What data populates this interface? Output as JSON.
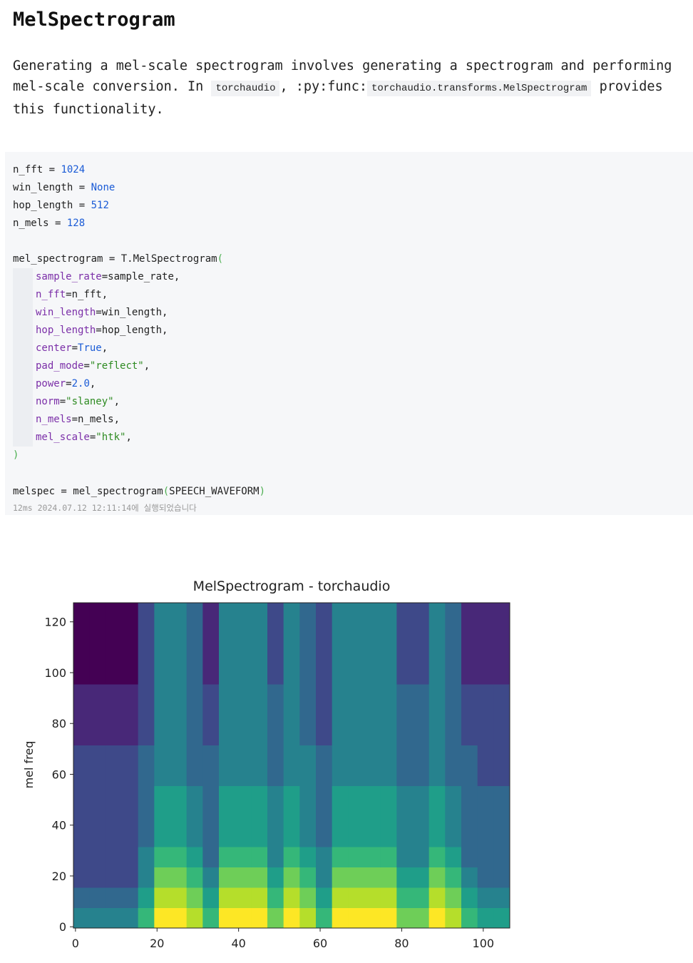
{
  "header": {
    "title": "MelSpectrogram"
  },
  "paragraph": [
    {
      "text": "Generating a mel-scale spectrogram involves generating a spectrogram and performing mel-scale conversion. In "
    },
    {
      "code": "torchaudio"
    },
    {
      "text": ", :py:func:"
    },
    {
      "code": "torchaudio.transforms.MelSpectrogram"
    },
    {
      "text": " provides this functionality."
    }
  ],
  "code": {
    "setup": [
      [
        "n_fft",
        " = ",
        "1024"
      ],
      [
        "win_length",
        " = ",
        "None"
      ],
      [
        "hop_length",
        " = ",
        "512"
      ],
      [
        "n_mels",
        " = ",
        "128"
      ]
    ],
    "call": [
      "mel_spectrogram = T.MelSpectrogram",
      "("
    ],
    "args": [
      [
        "sample_rate",
        "=",
        "sample_rate",
        ","
      ],
      [
        "n_fft",
        "=",
        "n_fft",
        ","
      ],
      [
        "win_length",
        "=",
        "win_length",
        ","
      ],
      [
        "hop_length",
        "=",
        "hop_length",
        ","
      ],
      [
        "center",
        "=",
        "True",
        ","
      ],
      [
        "pad_mode",
        "=",
        "\"reflect\"",
        ","
      ],
      [
        "power",
        "=",
        "2.0",
        ","
      ],
      [
        "norm",
        "=",
        "\"slaney\"",
        ","
      ],
      [
        "n_mels",
        "=",
        "n_mels",
        ","
      ],
      [
        "mel_scale",
        "=",
        "\"htk\"",
        ","
      ]
    ],
    "close": ")",
    "last": [
      "melspec = mel_spectrogram",
      "(",
      "SPEECH_WAVEFORM",
      ")"
    ],
    "footer": "12ms 2024.07.12 12:11:14에 실행되었습니다"
  },
  "chart_data": {
    "type": "heatmap",
    "title": "MelSpectrogram - torchaudio",
    "y_label": "mel freq",
    "colormap": "viridis",
    "xlim": [
      -0.5,
      106.5
    ],
    "ylim": [
      -0.5,
      127.5
    ],
    "xticks": [
      0,
      20,
      40,
      60,
      80,
      100
    ],
    "yticks": [
      0,
      20,
      40,
      60,
      80,
      100,
      120
    ],
    "z": [
      [
        4,
        4,
        4,
        4,
        6,
        9,
        9,
        8,
        6,
        9,
        9,
        9,
        7,
        9,
        8,
        6,
        9,
        9,
        9,
        9,
        7,
        7,
        9,
        8,
        6,
        5,
        5
      ],
      [
        3,
        3,
        3,
        3,
        5,
        8,
        8,
        7,
        5,
        8,
        8,
        8,
        6,
        8,
        7,
        5,
        8,
        8,
        8,
        8,
        6,
        6,
        8,
        7,
        5,
        4,
        4
      ],
      [
        2,
        2,
        2,
        2,
        4,
        7,
        7,
        6,
        4,
        7,
        7,
        7,
        5,
        7,
        6,
        4,
        7,
        7,
        7,
        7,
        5,
        5,
        7,
        6,
        4,
        3,
        3
      ],
      [
        2,
        2,
        2,
        2,
        4,
        6,
        6,
        5,
        3,
        6,
        6,
        6,
        4,
        6,
        5,
        4,
        6,
        6,
        6,
        6,
        4,
        4,
        6,
        5,
        3,
        3,
        3
      ],
      [
        2,
        2,
        2,
        2,
        3,
        5,
        5,
        4,
        3,
        5,
        5,
        5,
        4,
        5,
        4,
        3,
        5,
        5,
        5,
        5,
        4,
        4,
        5,
        4,
        3,
        3,
        3
      ],
      [
        2,
        2,
        2,
        2,
        3,
        5,
        5,
        4,
        3,
        5,
        5,
        5,
        4,
        5,
        4,
        3,
        5,
        5,
        5,
        5,
        4,
        4,
        5,
        4,
        3,
        3,
        3
      ],
      [
        2,
        2,
        2,
        2,
        3,
        5,
        5,
        4,
        3,
        5,
        5,
        5,
        4,
        5,
        4,
        3,
        5,
        5,
        5,
        5,
        4,
        4,
        5,
        4,
        3,
        3,
        3
      ],
      [
        2,
        2,
        2,
        2,
        3,
        4,
        4,
        3,
        3,
        4,
        4,
        4,
        3,
        4,
        4,
        3,
        4,
        4,
        4,
        4,
        3,
        3,
        4,
        3,
        3,
        2,
        2
      ],
      [
        2,
        2,
        2,
        2,
        3,
        4,
        4,
        3,
        3,
        4,
        4,
        4,
        3,
        4,
        4,
        3,
        4,
        4,
        4,
        4,
        3,
        3,
        4,
        3,
        3,
        2,
        2
      ],
      [
        1,
        1,
        1,
        1,
        2,
        4,
        4,
        3,
        2,
        4,
        4,
        4,
        3,
        4,
        3,
        2,
        4,
        4,
        4,
        4,
        3,
        3,
        4,
        3,
        2,
        2,
        2
      ],
      [
        1,
        1,
        1,
        1,
        2,
        4,
        4,
        3,
        2,
        4,
        4,
        4,
        3,
        4,
        3,
        2,
        4,
        4,
        4,
        4,
        3,
        3,
        4,
        3,
        2,
        2,
        2
      ],
      [
        1,
        1,
        1,
        1,
        2,
        4,
        4,
        3,
        2,
        4,
        4,
        4,
        3,
        4,
        3,
        2,
        4,
        4,
        4,
        4,
        3,
        3,
        4,
        3,
        2,
        2,
        2
      ],
      [
        0,
        0,
        0,
        0,
        2,
        4,
        4,
        3,
        1,
        4,
        4,
        4,
        2,
        4,
        3,
        2,
        4,
        4,
        4,
        4,
        2,
        2,
        4,
        3,
        1,
        1,
        1
      ],
      [
        0,
        0,
        0,
        0,
        2,
        4,
        4,
        3,
        1,
        4,
        4,
        4,
        2,
        4,
        3,
        2,
        4,
        4,
        4,
        4,
        2,
        2,
        4,
        3,
        1,
        1,
        1
      ],
      [
        0,
        0,
        0,
        0,
        2,
        4,
        4,
        3,
        1,
        4,
        4,
        4,
        2,
        4,
        3,
        2,
        4,
        4,
        4,
        4,
        2,
        2,
        4,
        3,
        1,
        1,
        1
      ],
      [
        0,
        0,
        0,
        0,
        2,
        4,
        4,
        3,
        1,
        4,
        4,
        4,
        2,
        4,
        3,
        2,
        4,
        4,
        4,
        4,
        2,
        2,
        4,
        3,
        1,
        1,
        1
      ]
    ]
  }
}
